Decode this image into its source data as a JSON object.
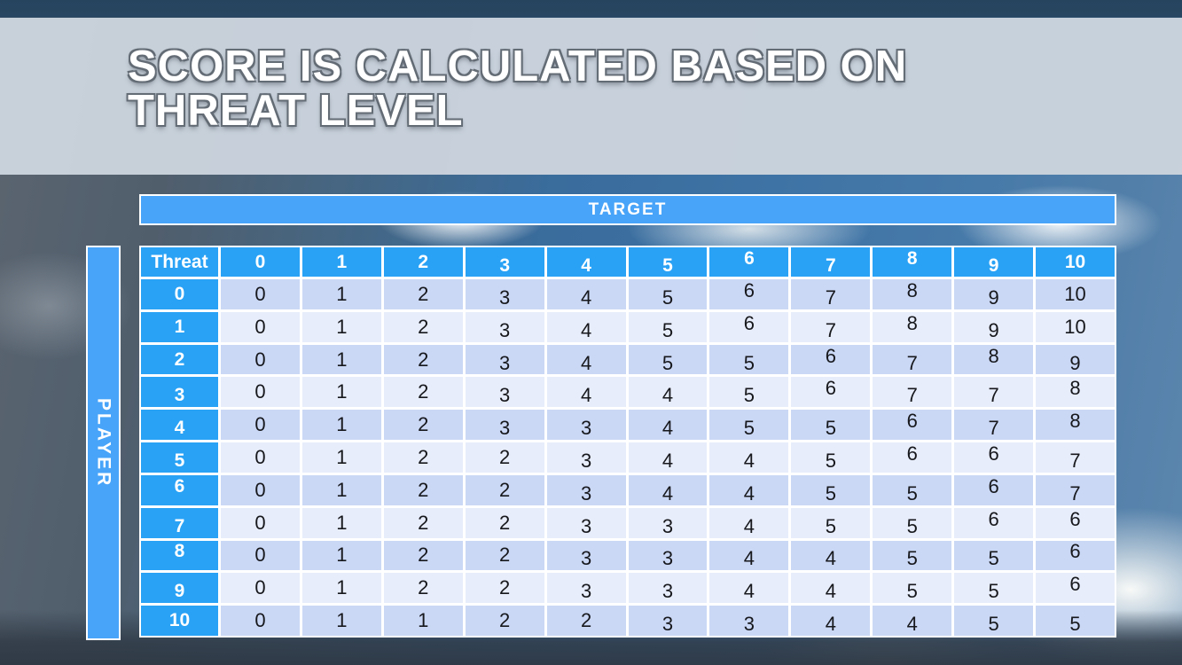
{
  "slide": {
    "title_line1": "SCORE IS CALCULATED BASED ON",
    "title_line2": "THREAT LEVEL"
  },
  "table": {
    "target_label": "TARGET",
    "player_label": "PLAYER",
    "corner_label": "Threat",
    "column_headers": [
      "0",
      "1",
      "2",
      "3",
      "4",
      "5",
      "6",
      "7",
      "8",
      "9",
      "10"
    ],
    "rows": [
      {
        "label": "0",
        "values": [
          0,
          1,
          2,
          3,
          4,
          5,
          6,
          7,
          8,
          9,
          10
        ]
      },
      {
        "label": "1",
        "values": [
          0,
          1,
          2,
          3,
          4,
          5,
          6,
          7,
          8,
          9,
          10
        ]
      },
      {
        "label": "2",
        "values": [
          0,
          1,
          2,
          3,
          4,
          5,
          5,
          6,
          7,
          8,
          9
        ]
      },
      {
        "label": "3",
        "values": [
          0,
          1,
          2,
          3,
          4,
          4,
          5,
          6,
          7,
          7,
          8
        ]
      },
      {
        "label": "4",
        "values": [
          0,
          1,
          2,
          3,
          3,
          4,
          5,
          5,
          6,
          7,
          8
        ]
      },
      {
        "label": "5",
        "values": [
          0,
          1,
          2,
          2,
          3,
          4,
          4,
          5,
          6,
          6,
          7
        ]
      },
      {
        "label": "6",
        "values": [
          0,
          1,
          2,
          2,
          3,
          4,
          4,
          5,
          5,
          6,
          7
        ]
      },
      {
        "label": "7",
        "values": [
          0,
          1,
          2,
          2,
          3,
          3,
          4,
          5,
          5,
          6,
          6
        ]
      },
      {
        "label": "8",
        "values": [
          0,
          1,
          2,
          2,
          3,
          3,
          4,
          4,
          5,
          5,
          6
        ]
      },
      {
        "label": "9",
        "values": [
          0,
          1,
          2,
          2,
          3,
          3,
          4,
          4,
          5,
          5,
          6
        ]
      },
      {
        "label": "10",
        "values": [
          0,
          1,
          1,
          2,
          2,
          3,
          3,
          4,
          4,
          5,
          5
        ]
      }
    ]
  },
  "colors": {
    "header_blue": "#29a2f5",
    "axis_bar_blue": "#47a4f8",
    "row_even": "#cad7f5",
    "row_odd": "#e8edfb",
    "title_band": "#cbd4dd",
    "title_text": "#ffffff",
    "title_outline": "#636b75",
    "body_text": "#16181c"
  }
}
